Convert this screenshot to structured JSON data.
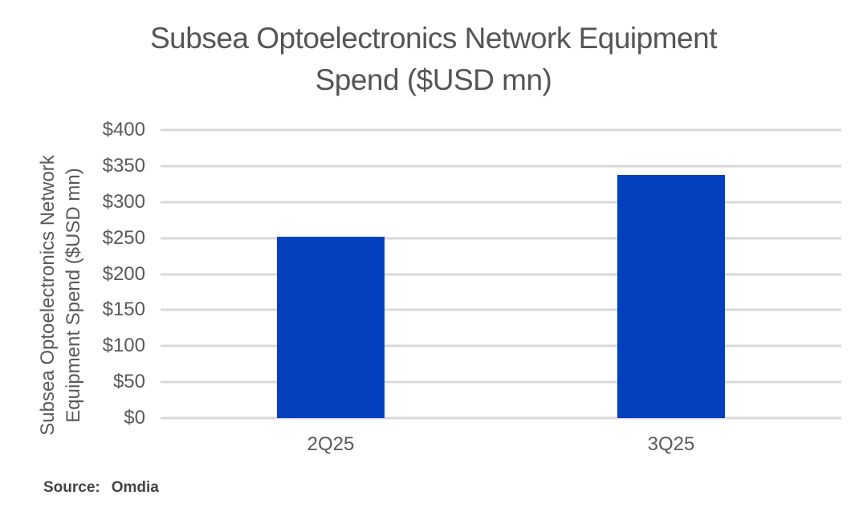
{
  "header": {
    "title_lines": [
      "Subsea Optoelectronics Network Equipment",
      "Spend ($USD mn)"
    ]
  },
  "source": {
    "label": "Source:",
    "value": "Omdia"
  },
  "chart_data": {
    "type": "bar",
    "title": "Subsea Optoelectronics Network Equipment Spend ($USD mn)",
    "categories": [
      "2Q25",
      "3Q25"
    ],
    "values": [
      252,
      338
    ],
    "xlabel": "",
    "ylabel": "Subsea Optoelectronics Network Equipment Spend ($USD mn)",
    "ylabel_lines": [
      "Subsea Optoelectronics Network",
      "Equipment Spend ($USD mn)"
    ],
    "ylim": [
      0,
      400
    ],
    "ytick_values": [
      0,
      50,
      100,
      150,
      200,
      250,
      300,
      350,
      400
    ],
    "ytick_labels": [
      "$0",
      "$50",
      "$100",
      "$150",
      "$200",
      "$250",
      "$300",
      "$350",
      "$400"
    ],
    "grid": true,
    "legend": false,
    "colors": {
      "bar": "#0340BD",
      "gridline": "#D9D9D9",
      "title_text": "#555555",
      "axis_text": "#595959",
      "source_text": "#444444",
      "background": "#FFFFFF"
    }
  }
}
